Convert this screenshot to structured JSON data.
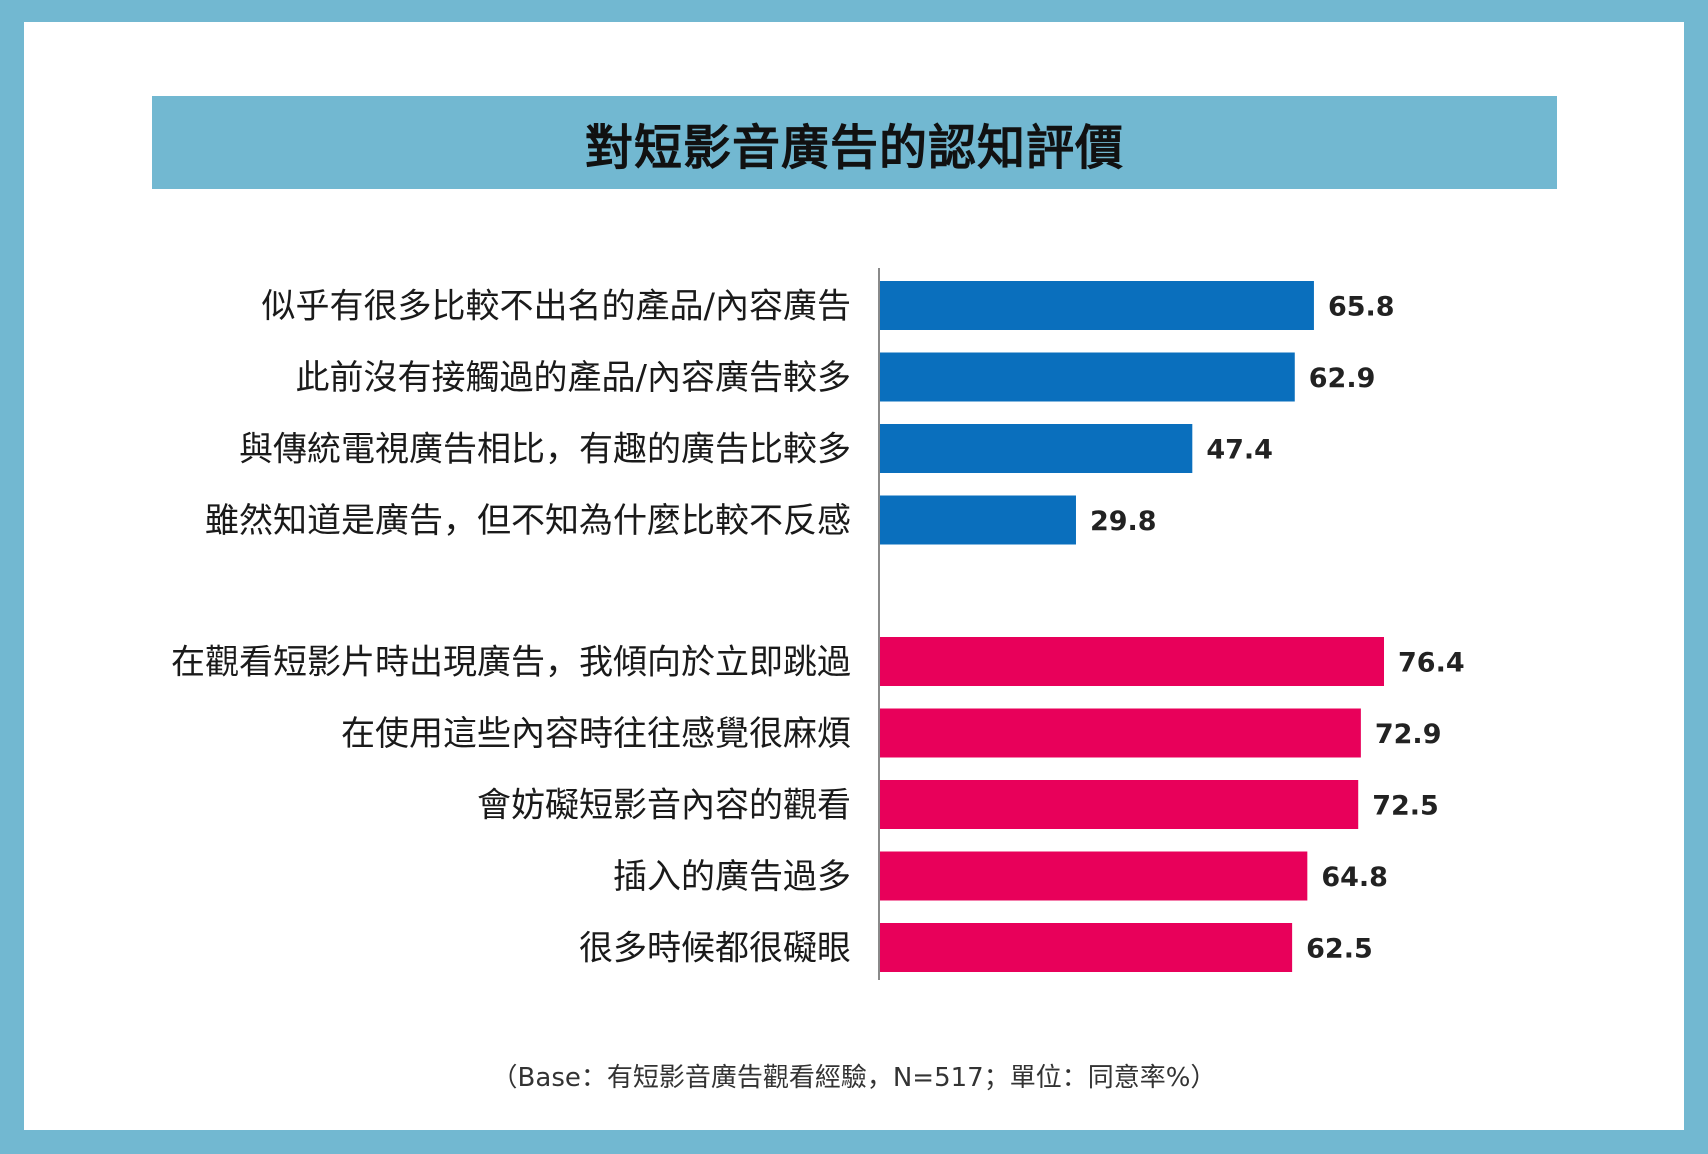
{
  "title": "對短影音廣告的認知評價",
  "footnote": "（Base：有短影音廣告觀看經驗，N=517；單位：同意率%）",
  "colors": {
    "frame": "#72b8d1",
    "positive_bars": "#0a6fbd",
    "negative_bars": "#e8005a"
  },
  "chart_data": {
    "type": "bar",
    "orientation": "horizontal",
    "title": "對短影音廣告的認知評價",
    "xlabel": "",
    "ylabel": "",
    "xlim": [
      0,
      100
    ],
    "grid": false,
    "legend": "none",
    "groups": [
      {
        "color": "#0a6fbd",
        "categories": [
          "似乎有很多比較不出名的產品/內容廣告",
          "此前沒有接觸過的產品/內容廣告較多",
          "與傳統電視廣告相比，有趣的廣告比較多",
          "雖然知道是廣告，但不知為什麼比較不反感"
        ],
        "values": [
          65.8,
          62.9,
          47.4,
          29.8
        ]
      },
      {
        "color": "#e8005a",
        "categories": [
          "在觀看短影片時出現廣告，我傾向於立即跳過",
          "在使用這些內容時往往感覺很麻煩",
          "會妨礙短影音內容的觀看",
          "插入的廣告過多",
          "很多時候都很礙眼"
        ],
        "values": [
          76.4,
          72.9,
          72.5,
          64.8,
          62.5
        ]
      }
    ]
  }
}
